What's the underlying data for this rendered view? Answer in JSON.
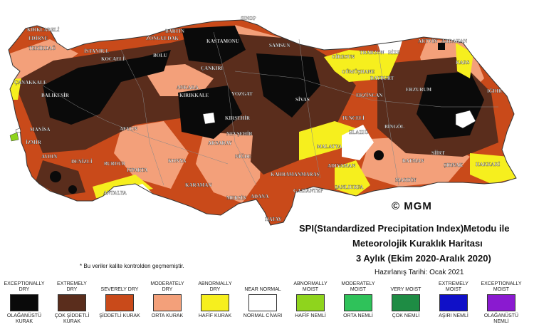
{
  "map": {
    "colors": {
      "exceptionally_dry": "#0a0a0a",
      "extremely_dry": "#5a2d1c",
      "severely_dry": "#c94a1a",
      "moderately_dry": "#f3a07a",
      "abnormally_dry": "#f6ef1e",
      "near_normal": "#ffffff",
      "abnormally_moist": "#8fd41d",
      "moderately_moist": "#2fc25a",
      "very_moist": "#1e8c44",
      "extremely_moist": "#1010c8",
      "exceptionally_moist": "#8a1ad0"
    },
    "cities": [
      {
        "name": "SINOP"
      },
      {
        "name": "KIRKLARELİ"
      },
      {
        "name": "EDİRNE"
      },
      {
        "name": "TEKİRDAĞ"
      },
      {
        "name": "İSTANBUL"
      },
      {
        "name": "KOCAELİ"
      },
      {
        "name": "BARTIN"
      },
      {
        "name": "ZONGULDAK"
      },
      {
        "name": "BOLU"
      },
      {
        "name": "KASTAMONU"
      },
      {
        "name": "SAMSUN"
      },
      {
        "name": "GİRESUN"
      },
      {
        "name": "TRABZON"
      },
      {
        "name": "RİZE"
      },
      {
        "name": "ARTVİN"
      },
      {
        "name": "ARDAHAN"
      },
      {
        "name": "KARS"
      },
      {
        "name": "IĞDIR"
      },
      {
        "name": "ERZURUM"
      },
      {
        "name": "BAYBURT"
      },
      {
        "name": "GÜMÜŞHANE"
      },
      {
        "name": "ERZİNCAN"
      },
      {
        "name": "TUNCELİ"
      },
      {
        "name": "BİNGÖL"
      },
      {
        "name": "ELAZIĞ"
      },
      {
        "name": "MALATYA"
      },
      {
        "name": "ADIYAMAN"
      },
      {
        "name": "ŞANLIURFA"
      },
      {
        "name": "MARDİN"
      },
      {
        "name": "BATMAN"
      },
      {
        "name": "SİİRT"
      },
      {
        "name": "ŞIRNAK"
      },
      {
        "name": "HAKKARİ"
      },
      {
        "name": "ÇANAKKALE"
      },
      {
        "name": "BALIKESİR"
      },
      {
        "name": "MANİSA"
      },
      {
        "name": "İZMİR"
      },
      {
        "name": "AYDIN"
      },
      {
        "name": "DENİZLİ"
      },
      {
        "name": "BURDUR"
      },
      {
        "name": "ISPARTA"
      },
      {
        "name": "ANTALYA"
      },
      {
        "name": "AFYON"
      },
      {
        "name": "KONYA"
      },
      {
        "name": "KARAMAN"
      },
      {
        "name": "MERSİN"
      },
      {
        "name": "ADANA"
      },
      {
        "name": "HATAY"
      },
      {
        "name": "KAHRAMANMARAŞ"
      },
      {
        "name": "GAZİANTEP"
      },
      {
        "name": "NİĞDE"
      },
      {
        "name": "AKSARAY"
      },
      {
        "name": "NEVŞEHİR"
      },
      {
        "name": "ANKARA"
      },
      {
        "name": "KIRIKKALE"
      },
      {
        "name": "YOZGAT"
      },
      {
        "name": "ÇANKIRI"
      },
      {
        "name": "SİVAS"
      },
      {
        "name": "KIRŞEHİR"
      }
    ]
  },
  "logo": "© MGM",
  "title": {
    "line1": "SPI(Standardized Precipitation Index)Metodu ile",
    "line2": "Meteorolojik Kuraklık Haritası",
    "line3": "3 Aylık (Ekim 2020-Aralık 2020)",
    "line4": "Hazırlanış Tarihi: Ocak 2021"
  },
  "note": "* Bu veriler kalite kontrolden geçmemiştir.",
  "legend": [
    {
      "en": "EXCEPTIONALLY DRY",
      "tr": "OLAĞANÜSTÜ KURAK",
      "color": "#0a0a0a"
    },
    {
      "en": "EXTREMELY DRY",
      "tr": "ÇOK ŞİDDETLİ KURAK",
      "color": "#5a2d1c"
    },
    {
      "en": "SEVERELY DRY",
      "tr": "ŞİDDETLİ KURAK",
      "color": "#c94a1a"
    },
    {
      "en": "MODERATELY DRY",
      "tr": "ORTA KURAK",
      "color": "#f3a07a"
    },
    {
      "en": "ABNORMALLY DRY",
      "tr": "HAFİF KURAK",
      "color": "#f6ef1e"
    },
    {
      "en": "NEAR NORMAL",
      "tr": "NORMAL CİVARI",
      "color": "#ffffff"
    },
    {
      "en": "ABNORMALLY MOIST",
      "tr": "HAFİF NEMLİ",
      "color": "#8fd41d"
    },
    {
      "en": "MODERATELY MOIST",
      "tr": "ORTA NEMLİ",
      "color": "#2fc25a"
    },
    {
      "en": "VERY MOIST",
      "tr": "ÇOK NEMLİ",
      "color": "#1e8c44"
    },
    {
      "en": "EXTREMELY MOIST",
      "tr": "AŞIRI NEMLİ",
      "color": "#1010c8"
    },
    {
      "en": "EXCEPTIONALLY MOIST",
      "tr": "OLAĞANÜSTÜ NEMLİ",
      "color": "#8a1ad0"
    }
  ]
}
